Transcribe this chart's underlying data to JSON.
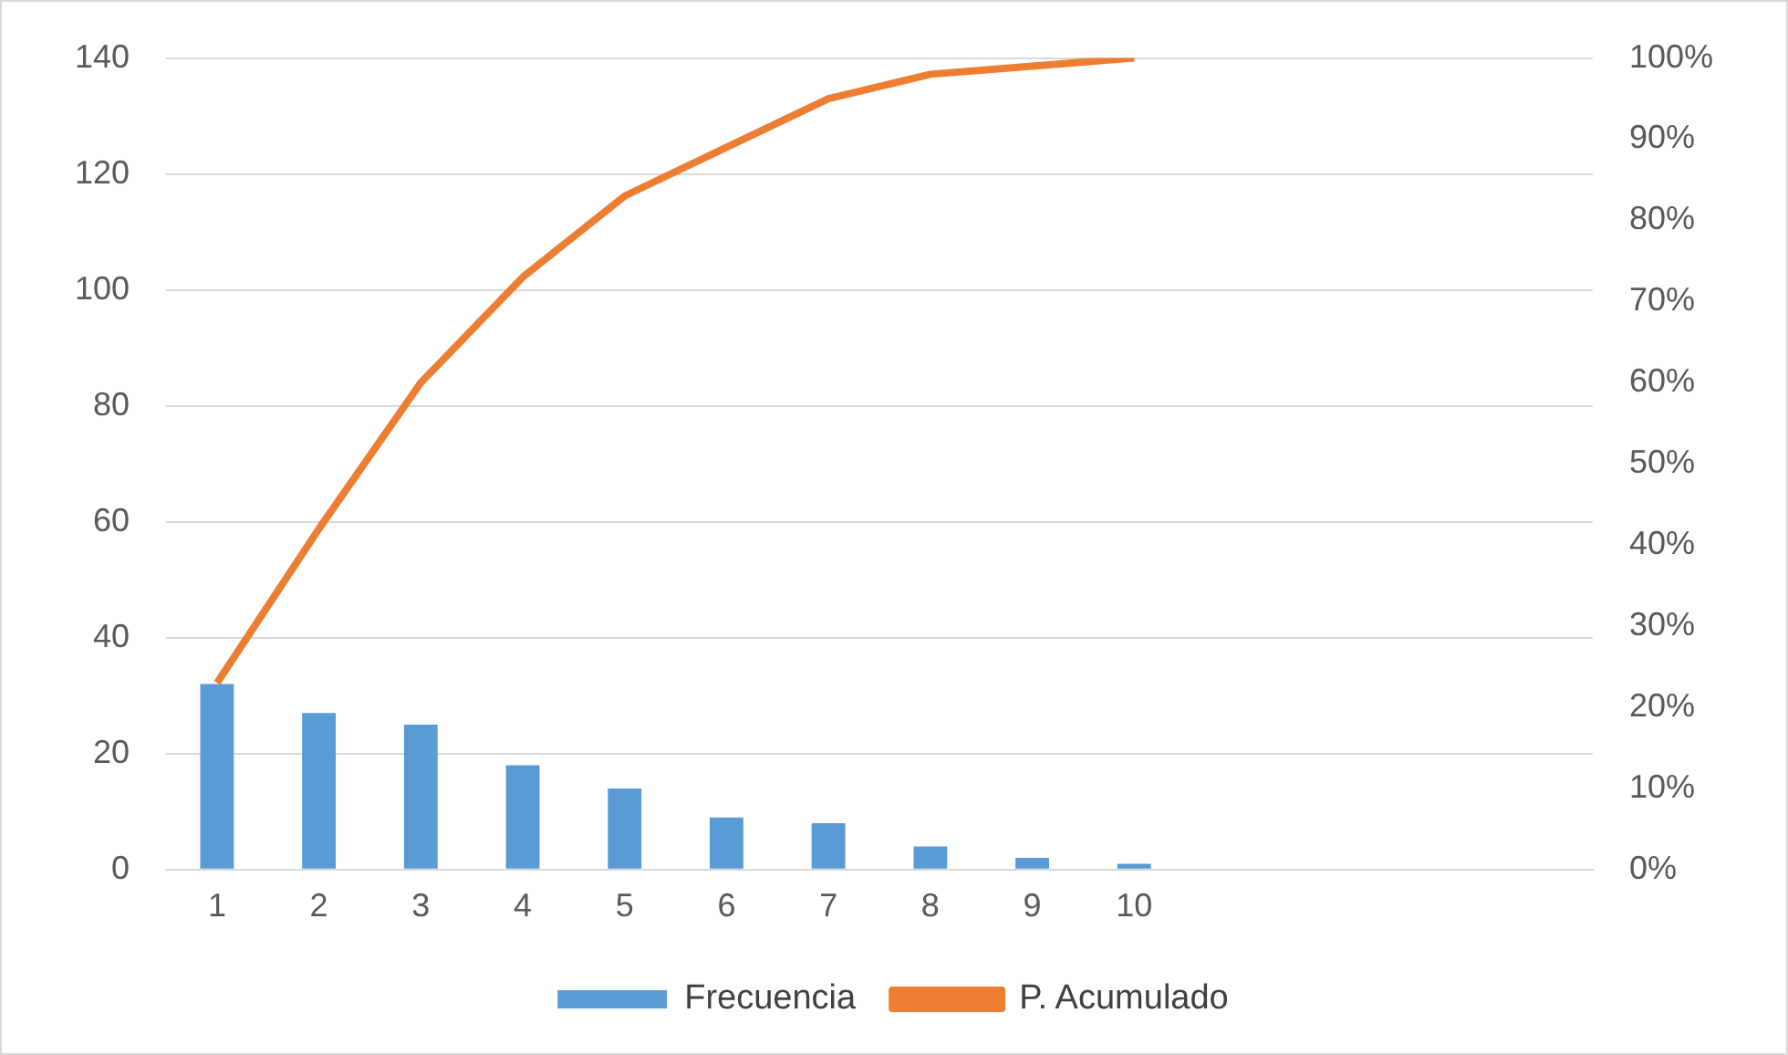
{
  "chart_data": {
    "type": "bar",
    "categories": [
      "1",
      "2",
      "3",
      "4",
      "5",
      "6",
      "7",
      "8",
      "9",
      "10",
      null,
      null,
      null,
      null
    ],
    "series": [
      {
        "name": "Frecuencia",
        "color": "#5b9bd5",
        "values": [
          32,
          27,
          25,
          18,
          14,
          9,
          8,
          4,
          2,
          1,
          null,
          null,
          null,
          null
        ]
      },
      {
        "name": "P. Acumulado",
        "type": "line",
        "axis": "y2",
        "color": "#ed7d31",
        "values": [
          23,
          42,
          60,
          73,
          83,
          89,
          95,
          98,
          99,
          100,
          null,
          null,
          null,
          null
        ]
      }
    ],
    "ylim": [
      0,
      140
    ],
    "yticks": [
      0,
      20,
      40,
      60,
      80,
      100,
      120,
      140
    ],
    "y2lim": [
      0,
      100
    ],
    "y2ticks": [
      {
        "value": 0,
        "label": "0%"
      },
      {
        "value": 10,
        "label": "10%"
      },
      {
        "value": 20,
        "label": "20%"
      },
      {
        "value": 30,
        "label": "30%"
      },
      {
        "value": 40,
        "label": "40%"
      },
      {
        "value": 50,
        "label": "50%"
      },
      {
        "value": 60,
        "label": "60%"
      },
      {
        "value": 70,
        "label": "70%"
      },
      {
        "value": 80,
        "label": "80%"
      },
      {
        "value": 90,
        "label": "90%"
      },
      {
        "value": 100,
        "label": "100%"
      }
    ],
    "grid": "y",
    "legend": "bottom",
    "marker": "none",
    "line_style": "solid"
  }
}
